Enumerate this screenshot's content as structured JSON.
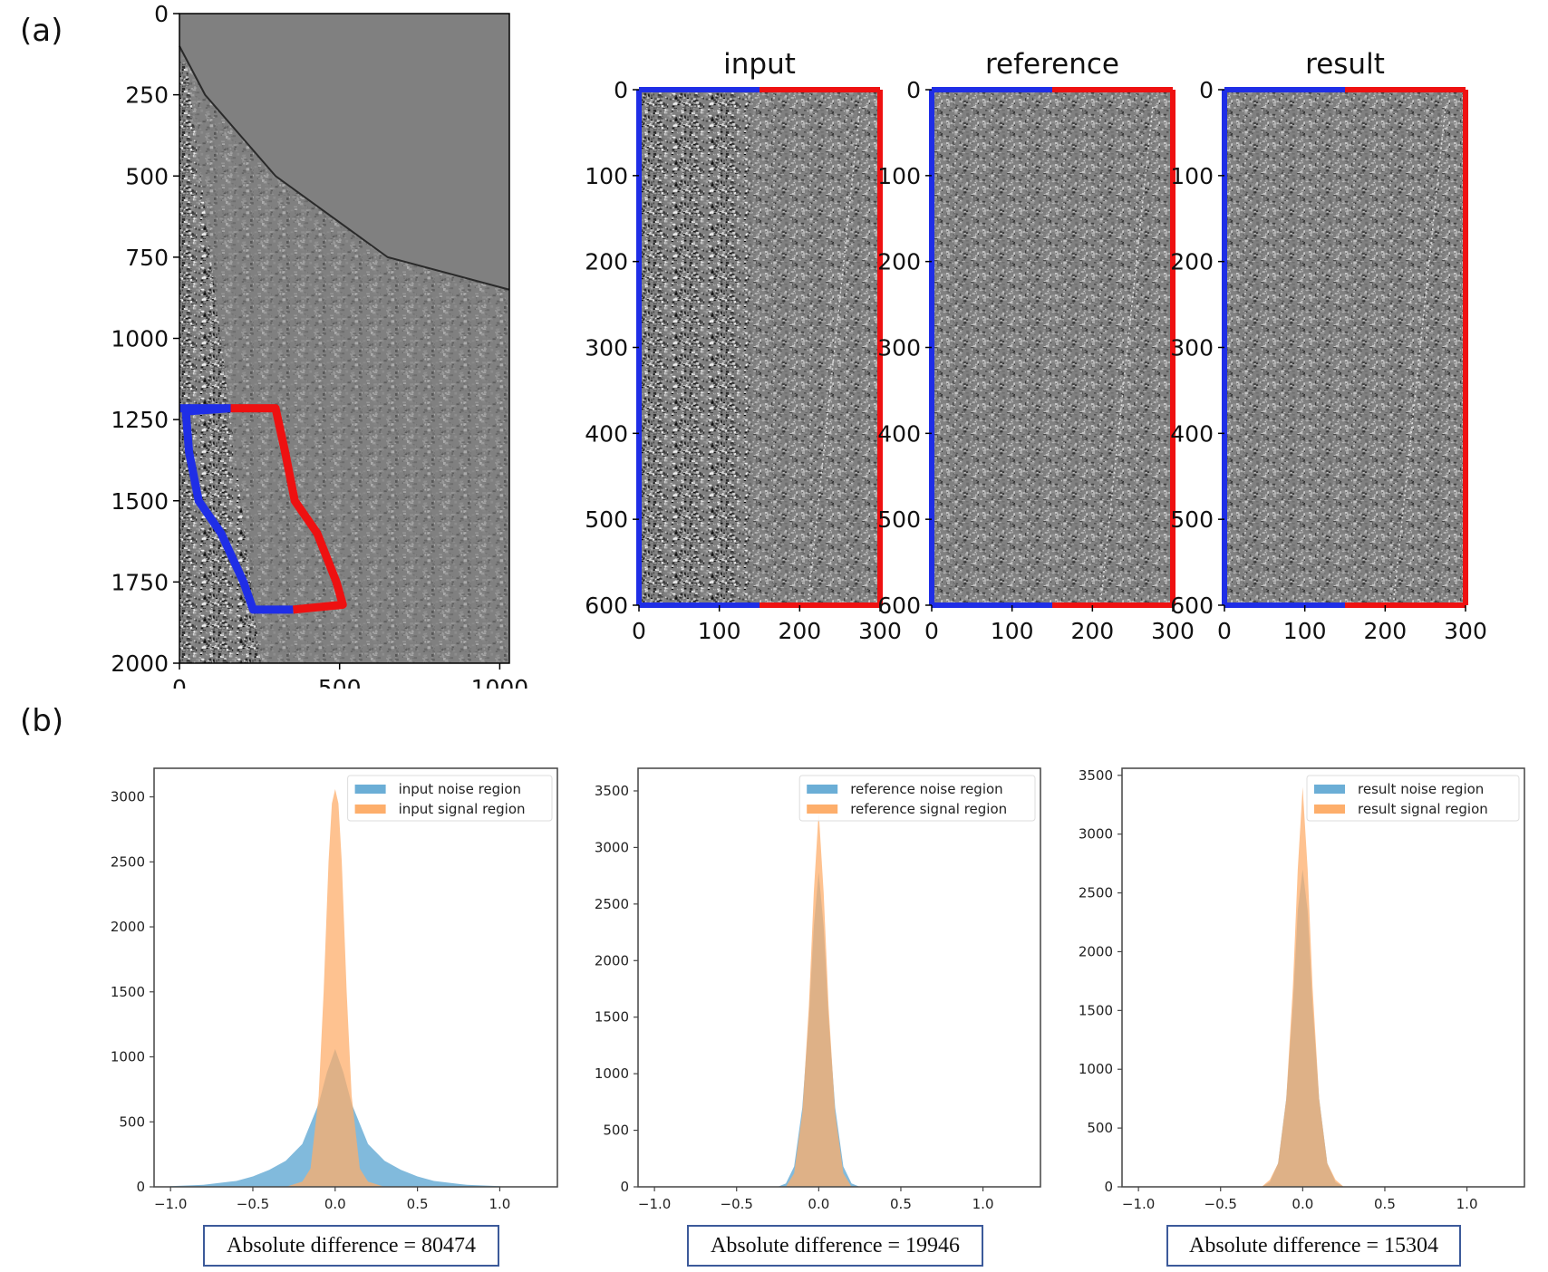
{
  "panel_labels": {
    "a": "(a)",
    "b": "(b)"
  },
  "colors": {
    "noise_outline": "#1f2ee6",
    "signal_outline": "#ee1111",
    "hist_noise": "#6baed6",
    "hist_signal": "#fdae6b",
    "seismic_bg": "#808080"
  },
  "chart_data": [
    {
      "id": "shot-gather",
      "type": "heatmap",
      "title": "",
      "xlabel": "",
      "ylabel": "",
      "xlim": [
        0,
        1030
      ],
      "ylim": [
        2000,
        0
      ],
      "xticks": [
        "0",
        "500",
        "1000"
      ],
      "xtick_values": [
        0,
        500,
        1000
      ],
      "yticks": [
        "0",
        "250",
        "500",
        "750",
        "1000",
        "1250",
        "1500",
        "1750",
        "2000"
      ],
      "ytick_values": [
        0,
        250,
        500,
        750,
        1000,
        1250,
        1500,
        1750,
        2000
      ],
      "first_break_curve": [
        [
          100,
          0
        ],
        [
          250,
          80
        ],
        [
          500,
          300
        ],
        [
          750,
          650
        ],
        [
          850,
          1030
        ]
      ],
      "noise_region_outline": [
        [
          160,
          1215
        ],
        [
          1215,
          0
        ],
        [
          1325,
          20
        ],
        [
          1500,
          70
        ],
        [
          1600,
          150
        ],
        [
          1730,
          200
        ],
        [
          1835,
          220
        ],
        [
          1835,
          355
        ]
      ],
      "signal_region_outline": [
        [
          160,
          1215
        ],
        [
          300,
          1215
        ],
        [
          1215,
          300
        ],
        [
          1250,
          320
        ],
        [
          1325,
          335
        ],
        [
          1500,
          375
        ],
        [
          1600,
          435
        ],
        [
          1730,
          490
        ],
        [
          1800,
          515
        ],
        [
          1835,
          510
        ],
        [
          1835,
          355
        ]
      ],
      "noise_outline_points": [
        [
          0,
          1215
        ],
        [
          160,
          1215
        ],
        [
          20,
          1225
        ],
        [
          30,
          1350
        ],
        [
          60,
          1500
        ],
        [
          130,
          1600
        ],
        [
          200,
          1750
        ],
        [
          230,
          1835
        ],
        [
          355,
          1835
        ]
      ],
      "signal_outline_points": [
        [
          160,
          1215
        ],
        [
          300,
          1215
        ],
        [
          330,
          1350
        ],
        [
          360,
          1500
        ],
        [
          430,
          1600
        ],
        [
          490,
          1750
        ],
        [
          510,
          1820
        ],
        [
          355,
          1835
        ]
      ]
    },
    {
      "id": "patch-input",
      "type": "heatmap",
      "title": "input",
      "xlim": [
        0,
        300
      ],
      "ylim": [
        600,
        0
      ],
      "xticks": [
        "0",
        "100",
        "200",
        "300"
      ],
      "xtick_values": [
        0,
        100,
        200,
        300
      ],
      "yticks": [
        "0",
        "100",
        "200",
        "300",
        "400",
        "500",
        "600"
      ],
      "ytick_values": [
        0,
        100,
        200,
        300,
        400,
        500,
        600
      ],
      "noise_columns": [
        0,
        150
      ],
      "signal_columns": [
        150,
        300
      ]
    },
    {
      "id": "patch-reference",
      "type": "heatmap",
      "title": "reference",
      "xlim": [
        0,
        300
      ],
      "ylim": [
        600,
        0
      ],
      "xticks": [
        "0",
        "100",
        "200",
        "300"
      ],
      "xtick_values": [
        0,
        100,
        200,
        300
      ],
      "yticks": [
        "0",
        "100",
        "200",
        "300",
        "400",
        "500",
        "600"
      ],
      "ytick_values": [
        0,
        100,
        200,
        300,
        400,
        500,
        600
      ],
      "noise_columns": [
        0,
        150
      ],
      "signal_columns": [
        150,
        300
      ]
    },
    {
      "id": "patch-result",
      "type": "heatmap",
      "title": "result",
      "xlim": [
        0,
        300
      ],
      "ylim": [
        600,
        0
      ],
      "xticks": [
        "0",
        "100",
        "200",
        "300"
      ],
      "xtick_values": [
        0,
        100,
        200,
        300
      ],
      "yticks": [
        "0",
        "100",
        "200",
        "300",
        "400",
        "500",
        "600"
      ],
      "ytick_values": [
        0,
        100,
        200,
        300,
        400,
        500,
        600
      ],
      "noise_columns": [
        0,
        150
      ],
      "signal_columns": [
        150,
        300
      ]
    },
    {
      "id": "hist-input",
      "type": "area",
      "title": "",
      "xlim": [
        -1.1,
        1.35
      ],
      "ylim": [
        0,
        3220
      ],
      "xticks": [
        "−1.0",
        "−0.5",
        "0.0",
        "0.5",
        "1.0"
      ],
      "xtick_values": [
        -1.0,
        -0.5,
        0.0,
        0.5,
        1.0
      ],
      "yticks": [
        "0",
        "500",
        "1000",
        "1500",
        "2000",
        "2500",
        "3000"
      ],
      "ytick_values": [
        0,
        500,
        1000,
        1500,
        2000,
        2500,
        3000
      ],
      "legend": [
        "input noise region",
        "input signal region"
      ],
      "legend_position": "top-right",
      "series": [
        {
          "name": "input noise region",
          "x": [
            -1.0,
            -0.8,
            -0.6,
            -0.5,
            -0.4,
            -0.3,
            -0.2,
            -0.1,
            -0.05,
            0.0,
            0.05,
            0.1,
            0.2,
            0.3,
            0.4,
            0.5,
            0.6,
            0.8,
            1.0
          ],
          "values": [
            5,
            15,
            45,
            80,
            130,
            200,
            330,
            640,
            880,
            1060,
            880,
            640,
            330,
            200,
            130,
            80,
            45,
            15,
            5
          ]
        },
        {
          "name": "input signal region",
          "x": [
            -0.3,
            -0.2,
            -0.15,
            -0.1,
            -0.07,
            -0.04,
            -0.02,
            0.0,
            0.02,
            0.04,
            0.07,
            0.1,
            0.15,
            0.2,
            0.3
          ],
          "values": [
            0,
            40,
            140,
            700,
            1500,
            2500,
            2950,
            3060,
            2950,
            2500,
            1500,
            700,
            140,
            40,
            0
          ]
        }
      ],
      "annotation": "Absolute difference = 80474"
    },
    {
      "id": "hist-reference",
      "type": "area",
      "title": "",
      "xlim": [
        -1.1,
        1.35
      ],
      "ylim": [
        0,
        3700
      ],
      "xticks": [
        "−1.0",
        "−0.5",
        "0.0",
        "0.5",
        "1.0"
      ],
      "xtick_values": [
        -1.0,
        -0.5,
        0.0,
        0.5,
        1.0
      ],
      "yticks": [
        "0",
        "500",
        "1000",
        "1500",
        "2000",
        "2500",
        "3000",
        "3500"
      ],
      "ytick_values": [
        0,
        500,
        1000,
        1500,
        2000,
        2500,
        3000,
        3500
      ],
      "legend": [
        "reference noise region",
        "reference signal region"
      ],
      "legend_position": "top-right",
      "series": [
        {
          "name": "reference noise region",
          "x": [
            -0.25,
            -0.2,
            -0.15,
            -0.1,
            -0.06,
            -0.03,
            0.0,
            0.03,
            0.06,
            0.1,
            0.15,
            0.2,
            0.25
          ],
          "values": [
            0,
            30,
            180,
            700,
            1500,
            2300,
            2780,
            2300,
            1500,
            700,
            180,
            30,
            0
          ]
        },
        {
          "name": "reference signal region",
          "x": [
            -0.2,
            -0.15,
            -0.1,
            -0.06,
            -0.03,
            0.0,
            0.03,
            0.06,
            0.1,
            0.15,
            0.2
          ],
          "values": [
            0,
            120,
            650,
            1600,
            2600,
            3320,
            2600,
            1600,
            650,
            120,
            0
          ]
        }
      ],
      "annotation": "Absolute difference = 19946"
    },
    {
      "id": "hist-result",
      "type": "area",
      "title": "",
      "xlim": [
        -1.1,
        1.35
      ],
      "ylim": [
        0,
        3560
      ],
      "xticks": [
        "−1.0",
        "−0.5",
        "0.0",
        "0.5",
        "1.0"
      ],
      "xtick_values": [
        -1.0,
        -0.5,
        0.0,
        0.5,
        1.0
      ],
      "yticks": [
        "0",
        "500",
        "1000",
        "1500",
        "2000",
        "2500",
        "3000",
        "3500"
      ],
      "ytick_values": [
        0,
        500,
        1000,
        1500,
        2000,
        2500,
        3000,
        3500
      ],
      "legend": [
        "result noise region",
        "result signal region"
      ],
      "legend_position": "top-right",
      "series": [
        {
          "name": "result noise region",
          "x": [
            -0.25,
            -0.2,
            -0.15,
            -0.1,
            -0.06,
            -0.03,
            0.0,
            0.03,
            0.06,
            0.1,
            0.15,
            0.2,
            0.25
          ],
          "values": [
            0,
            40,
            200,
            750,
            1550,
            2350,
            2700,
            2350,
            1550,
            750,
            200,
            40,
            0
          ]
        },
        {
          "name": "result signal region",
          "x": [
            -0.25,
            -0.2,
            -0.15,
            -0.1,
            -0.06,
            -0.03,
            0.0,
            0.03,
            0.06,
            0.1,
            0.15,
            0.2,
            0.25
          ],
          "values": [
            0,
            60,
            200,
            750,
            1700,
            2700,
            3400,
            2700,
            1700,
            750,
            200,
            60,
            0
          ]
        }
      ],
      "annotation": "Absolute difference = 15304"
    }
  ]
}
